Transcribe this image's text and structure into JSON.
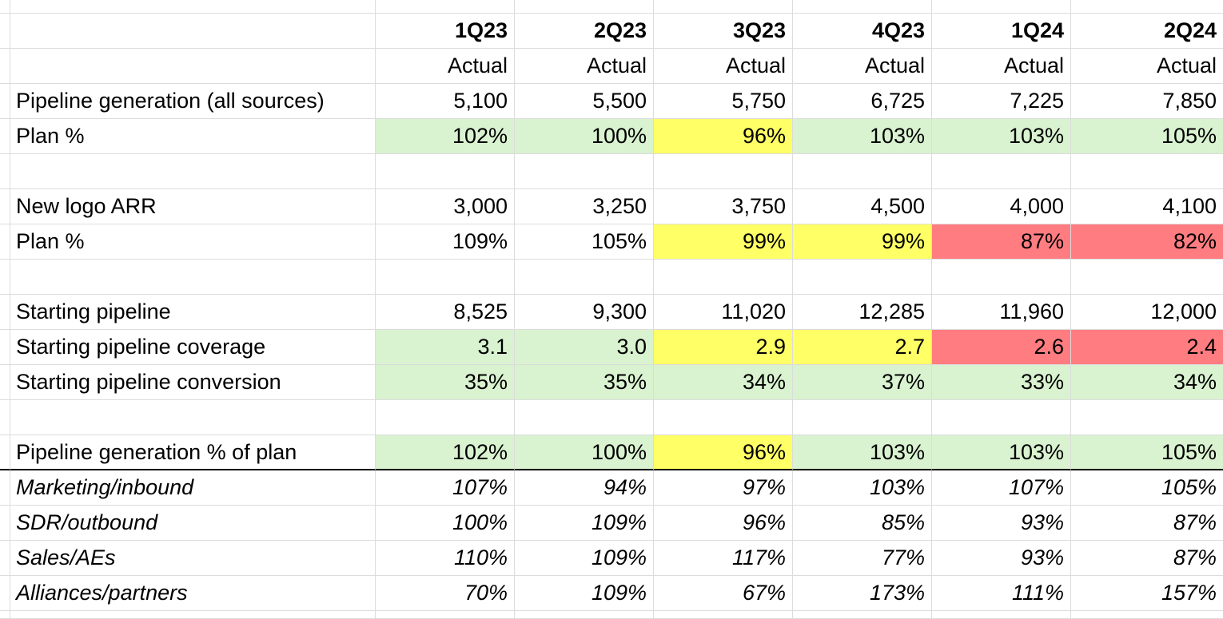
{
  "columns": [
    {
      "quarter": "1Q23",
      "type": "Actual"
    },
    {
      "quarter": "2Q23",
      "type": "Actual"
    },
    {
      "quarter": "3Q23",
      "type": "Actual"
    },
    {
      "quarter": "4Q23",
      "type": "Actual"
    },
    {
      "quarter": "1Q24",
      "type": "Actual"
    },
    {
      "quarter": "2Q24",
      "type": "Actual"
    }
  ],
  "rows": [
    {
      "label": "Pipeline generation (all sources)",
      "values": [
        "5,100",
        "5,500",
        "5,750",
        "6,725",
        "7,225",
        "7,850"
      ]
    },
    {
      "label": "Plan %",
      "values": [
        "102%",
        "100%",
        "96%",
        "103%",
        "103%",
        "105%"
      ],
      "fill": [
        "#d9f2d0",
        "#d9f2d0",
        "#ffff66",
        "#d9f2d0",
        "#d9f2d0",
        "#d9f2d0"
      ]
    },
    {
      "spacer": true
    },
    {
      "label": "New logo ARR",
      "values": [
        "3,000",
        "3,250",
        "3,750",
        "4,500",
        "4,000",
        "4,100"
      ]
    },
    {
      "label": "Plan %",
      "values": [
        "109%",
        "105%",
        "99%",
        "99%",
        "87%",
        "82%"
      ],
      "fill": [
        null,
        null,
        "#ffff66",
        "#ffff66",
        "#ff7c80",
        "#ff7c80"
      ]
    },
    {
      "spacer": true
    },
    {
      "label": "Starting pipeline",
      "values": [
        "8,525",
        "9,300",
        "11,020",
        "12,285",
        "11,960",
        "12,000"
      ]
    },
    {
      "label": "Starting pipeline coverage",
      "values": [
        "3.1",
        "3.0",
        "2.9",
        "2.7",
        "2.6",
        "2.4"
      ],
      "fill": [
        "#d9f2d0",
        "#d9f2d0",
        "#ffff66",
        "#ffff66",
        "#ff7c80",
        "#ff7c80"
      ]
    },
    {
      "label": "Starting pipeline conversion",
      "values": [
        "35%",
        "35%",
        "34%",
        "37%",
        "33%",
        "34%"
      ],
      "fill": [
        "#d9f2d0",
        "#d9f2d0",
        "#d9f2d0",
        "#d9f2d0",
        "#d9f2d0",
        "#d9f2d0"
      ]
    },
    {
      "spacer": true
    },
    {
      "label": "Pipeline generation % of plan",
      "values": [
        "102%",
        "100%",
        "96%",
        "103%",
        "103%",
        "105%"
      ],
      "fill": [
        "#d9f2d0",
        "#d9f2d0",
        "#ffff66",
        "#d9f2d0",
        "#d9f2d0",
        "#d9f2d0"
      ],
      "bottom_rule": true
    },
    {
      "label": "Marketing/inbound",
      "values": [
        "107%",
        "94%",
        "97%",
        "103%",
        "107%",
        "105%"
      ],
      "italic": true
    },
    {
      "label": "SDR/outbound",
      "values": [
        "100%",
        "109%",
        "96%",
        "85%",
        "93%",
        "87%"
      ],
      "italic": true
    },
    {
      "label": "Sales/AEs",
      "values": [
        "110%",
        "109%",
        "117%",
        "77%",
        "93%",
        "87%"
      ],
      "italic": true
    },
    {
      "label": "Alliances/partners",
      "values": [
        "70%",
        "109%",
        "67%",
        "173%",
        "111%",
        "157%"
      ],
      "italic": true
    }
  ]
}
